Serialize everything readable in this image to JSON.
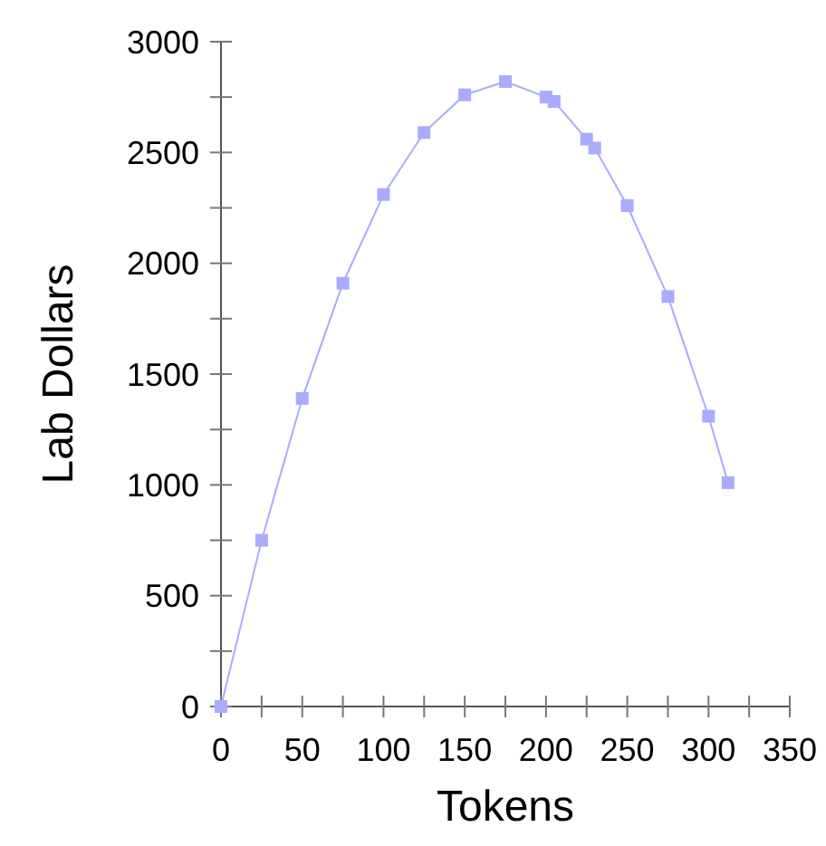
{
  "chart_data": {
    "type": "line",
    "xlabel": "Tokens",
    "ylabel": "Lab Dollars",
    "x": [
      0,
      25,
      50,
      75,
      100,
      125,
      150,
      175,
      200,
      205,
      225,
      230,
      250,
      275,
      300,
      312
    ],
    "series": [
      {
        "color": "#aaaaff",
        "values": [
          0,
          750,
          1390,
          1910,
          2310,
          2590,
          2760,
          2820,
          2750,
          2730,
          2560,
          2520,
          2260,
          1850,
          1310,
          1010
        ]
      }
    ],
    "xlim": [
      0,
      350
    ],
    "xticks": [
      0,
      {
        "value": 25,
        "label": null
      },
      50,
      {
        "value": 75,
        "label": null
      },
      100,
      {
        "value": 125,
        "label": null
      },
      150,
      {
        "value": 175,
        "label": null
      },
      200,
      {
        "value": 225,
        "label": null
      },
      250,
      {
        "value": 275,
        "label": null
      },
      300,
      {
        "value": 325,
        "label": null
      },
      350
    ],
    "ylim": [
      0,
      3000
    ],
    "yticks": [
      0,
      {
        "value": 250,
        "label": null
      },
      500,
      {
        "value": 750,
        "label": null
      },
      1000,
      {
        "value": 1250,
        "label": null
      },
      1500,
      {
        "value": 1750,
        "label": null
      },
      2000,
      {
        "value": 2250,
        "label": null
      },
      2500,
      {
        "value": 2750,
        "label": null
      },
      3000
    ],
    "grid": false,
    "marker": "square",
    "line_style": "solid"
  }
}
